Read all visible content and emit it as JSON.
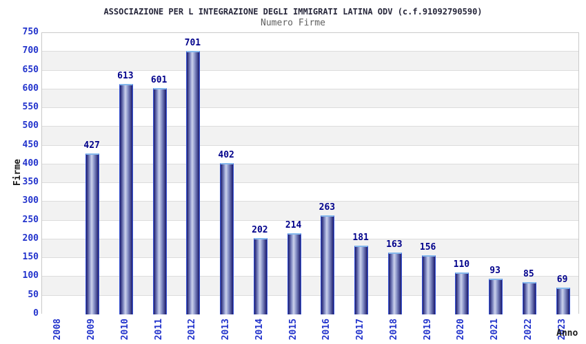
{
  "header": {
    "title": "ASSOCIAZIONE PER L INTEGRAZIONE DEGLI IMMIGRATI LATINA ODV (c.f.91092790590)",
    "subtitle": "Numero Firme"
  },
  "chart_data": {
    "type": "bar",
    "title": "ASSOCIAZIONE PER L INTEGRAZIONE DEGLI IMMIGRATI LATINA ODV (c.f.91092790590)",
    "subtitle": "Numero Firme",
    "xlabel": "Anno",
    "ylabel": "Firme",
    "categories": [
      "2008",
      "2009",
      "2010",
      "2011",
      "2012",
      "2013",
      "2014",
      "2015",
      "2016",
      "2017",
      "2018",
      "2019",
      "2020",
      "2021",
      "2022",
      "2023"
    ],
    "values": [
      0,
      427,
      613,
      601,
      701,
      402,
      202,
      214,
      263,
      181,
      163,
      156,
      110,
      93,
      85,
      69
    ],
    "ylim": [
      0,
      750
    ],
    "ytick_step": 50,
    "grid": "horizontal gridlines with alternating shaded bands",
    "legend": "none",
    "colors": {
      "tick_label": "#2233cc",
      "value_label": "#00008b",
      "bar_dark": "#1b1b6e",
      "bar_mid": "#8f99cc",
      "bar_light": "#ccd2ec",
      "bar_border": "#3a57d8",
      "bar_cap": "#85b8ec",
      "band_gray": "#f2f2f2",
      "band_white": "#ffffff",
      "gridline": "#dcdcdc",
      "plot_border": "#c9c9c9",
      "title_color": "#26263a",
      "subtitle_color": "#5f5f5f",
      "axis_title_color": "#1a1a1a"
    }
  }
}
